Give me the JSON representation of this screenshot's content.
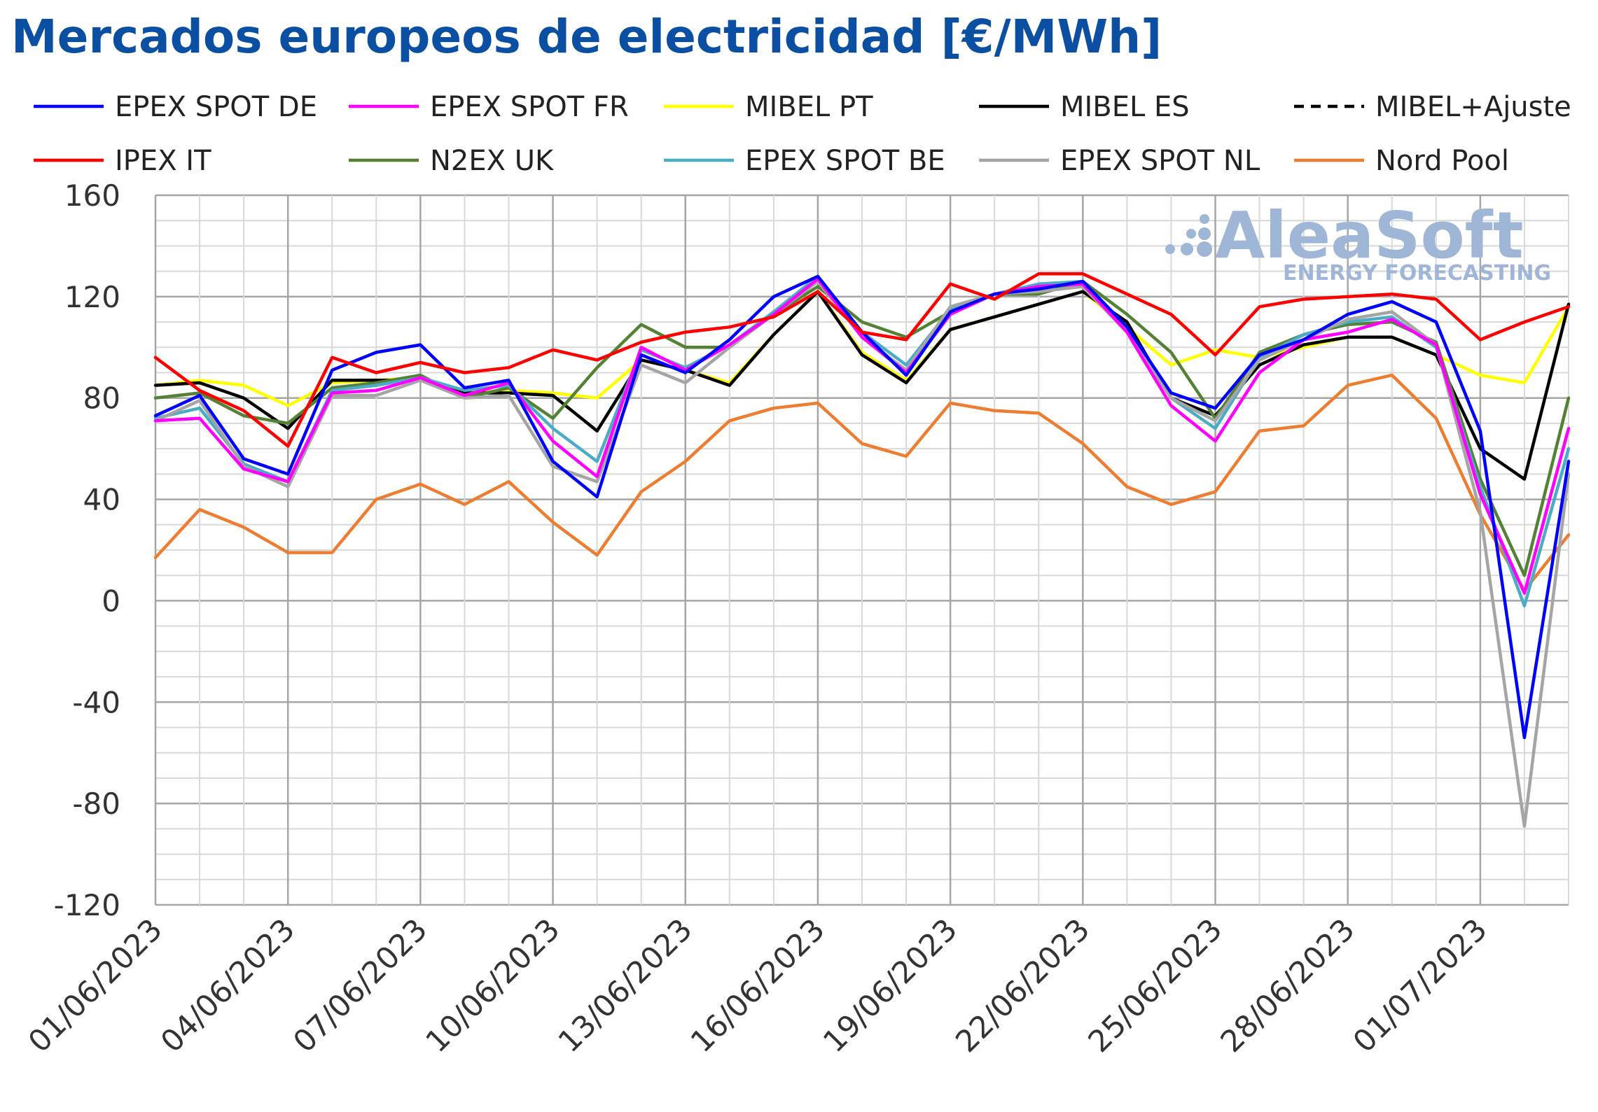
{
  "chart_data": {
    "type": "line",
    "title": "Mercados europeos de electricidad [€/MWh]",
    "xlabel": "",
    "ylabel": "",
    "ylim": [
      -120,
      160
    ],
    "y_ticks": [
      160,
      120,
      80,
      40,
      0,
      -40,
      -80,
      -120
    ],
    "x_tick_labels": [
      "01/06/2023",
      "04/06/2023",
      "07/06/2023",
      "10/06/2023",
      "13/06/2023",
      "16/06/2023",
      "19/06/2023",
      "22/06/2023",
      "25/06/2023",
      "28/06/2023",
      "01/07/2023"
    ],
    "x": [
      "01/06/2023",
      "02/06/2023",
      "03/06/2023",
      "04/06/2023",
      "05/06/2023",
      "06/06/2023",
      "07/06/2023",
      "08/06/2023",
      "09/06/2023",
      "10/06/2023",
      "11/06/2023",
      "12/06/2023",
      "13/06/2023",
      "14/06/2023",
      "15/06/2023",
      "16/06/2023",
      "17/06/2023",
      "18/06/2023",
      "19/06/2023",
      "20/06/2023",
      "21/06/2023",
      "22/06/2023",
      "23/06/2023",
      "24/06/2023",
      "25/06/2023",
      "26/06/2023",
      "27/06/2023",
      "28/06/2023",
      "29/06/2023",
      "30/06/2023",
      "01/07/2023",
      "02/07/2023",
      "03/07/2023"
    ],
    "grid": true,
    "legend_position": "top",
    "series": [
      {
        "name": "Nord Pool",
        "color": "#ed7d31",
        "dashed": false,
        "values": [
          17,
          36,
          29,
          19,
          19,
          40,
          46,
          38,
          47,
          31,
          18,
          43,
          55,
          71,
          76,
          78,
          62,
          57,
          78,
          75,
          74,
          62,
          45,
          38,
          43,
          67,
          69,
          85,
          89,
          72,
          34,
          4,
          26
        ]
      },
      {
        "name": "MIBEL PT",
        "color": "#ffff00",
        "dashed": false,
        "values": [
          85,
          87,
          85,
          77,
          86,
          87,
          88,
          82,
          83,
          82,
          80,
          95,
          91,
          86,
          105,
          122,
          98,
          87,
          107,
          112,
          117,
          122,
          108,
          93,
          99,
          96,
          100,
          104,
          104,
          97,
          89,
          86,
          116
        ]
      },
      {
        "name": "MIBEL ES",
        "color": "#000000",
        "dashed": false,
        "values": [
          85,
          86,
          80,
          68,
          87,
          87,
          87,
          82,
          82,
          81,
          67,
          95,
          91,
          85,
          105,
          122,
          97,
          86,
          107,
          112,
          117,
          122,
          110,
          80,
          73,
          93,
          101,
          104,
          104,
          97,
          60,
          48,
          117
        ]
      },
      {
        "name": "MIBEL+Ajuste",
        "color": "#000000",
        "dashed": true,
        "values": [
          85,
          86,
          80,
          68,
          87,
          87,
          87,
          82,
          82,
          81,
          67,
          95,
          91,
          85,
          105,
          122,
          97,
          86,
          107,
          112,
          117,
          122,
          110,
          80,
          73,
          93,
          101,
          104,
          104,
          97,
          60,
          48,
          117
        ]
      },
      {
        "name": "N2EX UK",
        "color": "#548235",
        "dashed": false,
        "values": [
          80,
          82,
          73,
          70,
          84,
          86,
          89,
          80,
          84,
          72,
          92,
          109,
          100,
          100,
          113,
          124,
          110,
          104,
          114,
          121,
          121,
          126,
          113,
          98,
          72,
          98,
          105,
          109,
          110,
          102,
          48,
          10,
          80
        ]
      },
      {
        "name": "EPEX SPOT BE",
        "color": "#4bacc6",
        "dashed": false,
        "values": [
          72,
          76,
          54,
          47,
          83,
          85,
          88,
          83,
          85,
          68,
          55,
          99,
          92,
          101,
          114,
          128,
          106,
          93,
          115,
          121,
          125,
          126,
          108,
          80,
          68,
          96,
          105,
          110,
          112,
          100,
          45,
          -2,
          60
        ]
      },
      {
        "name": "EPEX SPOT NL",
        "color": "#a5a5a5",
        "dashed": false,
        "values": [
          71,
          79,
          53,
          45,
          81,
          81,
          87,
          80,
          81,
          53,
          47,
          93,
          86,
          100,
          113,
          126,
          104,
          91,
          116,
          121,
          122,
          124,
          106,
          80,
          71,
          95,
          103,
          111,
          114,
          101,
          35,
          -89,
          50
        ]
      },
      {
        "name": "EPEX SPOT FR",
        "color": "#ff00ff",
        "dashed": false,
        "values": [
          71,
          72,
          52,
          47,
          82,
          83,
          88,
          81,
          86,
          63,
          49,
          100,
          91,
          101,
          113,
          127,
          104,
          90,
          113,
          121,
          124,
          125,
          106,
          77,
          63,
          90,
          103,
          106,
          111,
          101,
          42,
          3,
          68
        ]
      },
      {
        "name": "EPEX SPOT DE",
        "color": "#0000ff",
        "dashed": false,
        "values": [
          73,
          81,
          56,
          50,
          91,
          98,
          101,
          84,
          87,
          55,
          41,
          97,
          90,
          103,
          120,
          128,
          106,
          89,
          114,
          121,
          123,
          126,
          108,
          82,
          76,
          97,
          103,
          113,
          118,
          110,
          67,
          -54,
          55
        ]
      },
      {
        "name": "IPEX IT",
        "color": "#ff0000",
        "dashed": false,
        "values": [
          96,
          83,
          75,
          61,
          96,
          90,
          94,
          90,
          92,
          99,
          95,
          102,
          106,
          108,
          112,
          122,
          106,
          103,
          125,
          119,
          129,
          129,
          121,
          113,
          97,
          116,
          119,
          120,
          121,
          119,
          103,
          110,
          116
        ]
      }
    ]
  },
  "legend": [
    {
      "label": "EPEX SPOT DE",
      "color": "#0000ff",
      "dashed": false
    },
    {
      "label": "EPEX SPOT FR",
      "color": "#ff00ff",
      "dashed": false
    },
    {
      "label": "MIBEL PT",
      "color": "#ffff00",
      "dashed": false
    },
    {
      "label": "MIBEL ES",
      "color": "#000000",
      "dashed": false
    },
    {
      "label": "MIBEL+Ajuste",
      "color": "#000000",
      "dashed": true
    },
    {
      "label": "IPEX IT",
      "color": "#ff0000",
      "dashed": false
    },
    {
      "label": "N2EX UK",
      "color": "#548235",
      "dashed": false
    },
    {
      "label": "EPEX SPOT BE",
      "color": "#4bacc6",
      "dashed": false
    },
    {
      "label": "EPEX SPOT NL",
      "color": "#a5a5a5",
      "dashed": false
    },
    {
      "label": "Nord Pool",
      "color": "#ed7d31",
      "dashed": false
    }
  ],
  "watermark": {
    "brand": "AleaSoft",
    "tagline": "ENERGY FORECASTING",
    "color": "#9fb6d6"
  }
}
